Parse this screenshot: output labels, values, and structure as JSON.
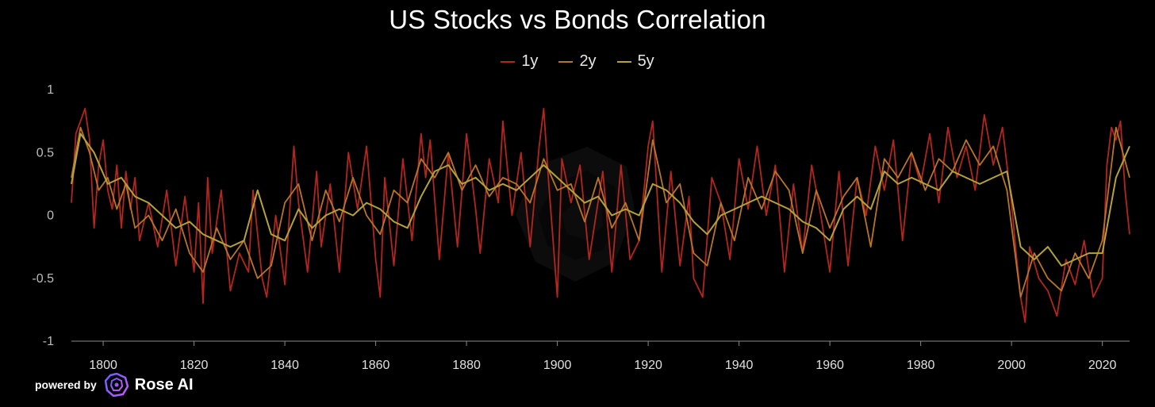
{
  "chart_data": {
    "type": "line",
    "title": "US Stocks vs Bonds Correlation",
    "xlabel": "",
    "ylabel": "",
    "xlim": [
      1793,
      2026
    ],
    "ylim": [
      -1,
      1
    ],
    "x_ticks": [
      1800,
      1820,
      1840,
      1860,
      1880,
      1900,
      1920,
      1940,
      1960,
      1980,
      2000,
      2020
    ],
    "y_ticks": [
      1,
      0.5,
      0,
      -0.5,
      -1
    ],
    "y_tick_labels": [
      "1",
      "0.5",
      "0",
      "-0.5",
      "-1"
    ],
    "grid": false,
    "legend_position": "top-center",
    "series": [
      {
        "name": "1y",
        "color": "#b3261e",
        "x": [
          1793,
          1794,
          1795,
          1796,
          1797,
          1798,
          1799,
          1800,
          1801,
          1802,
          1803,
          1804,
          1805,
          1806,
          1807,
          1808,
          1810,
          1812,
          1814,
          1816,
          1818,
          1820,
          1821,
          1822,
          1823,
          1824,
          1826,
          1828,
          1830,
          1832,
          1833,
          1835,
          1836,
          1838,
          1840,
          1842,
          1843,
          1845,
          1847,
          1848,
          1850,
          1852,
          1854,
          1856,
          1858,
          1860,
          1861,
          1862,
          1864,
          1866,
          1868,
          1870,
          1871,
          1872,
          1874,
          1876,
          1878,
          1880,
          1882,
          1883,
          1885,
          1887,
          1888,
          1890,
          1892,
          1894,
          1896,
          1897,
          1898,
          1900,
          1901,
          1903,
          1905,
          1907,
          1910,
          1912,
          1914,
          1916,
          1918,
          1920,
          1921,
          1923,
          1925,
          1927,
          1929,
          1930,
          1932,
          1934,
          1936,
          1938,
          1940,
          1942,
          1944,
          1946,
          1948,
          1950,
          1952,
          1954,
          1956,
          1958,
          1960,
          1962,
          1964,
          1966,
          1968,
          1970,
          1972,
          1974,
          1976,
          1978,
          1980,
          1982,
          1984,
          1986,
          1988,
          1990,
          1992,
          1994,
          1996,
          1998,
          2000,
          2001,
          2002,
          2003,
          2004,
          2006,
          2008,
          2010,
          2012,
          2014,
          2016,
          2018,
          2020,
          2021,
          2022,
          2023,
          2024,
          2025,
          2026
        ],
        "values": [
          0.1,
          0.65,
          0.75,
          0.85,
          0.6,
          -0.1,
          0.4,
          0.6,
          0.2,
          0.05,
          0.4,
          -0.1,
          0.35,
          0.05,
          0.3,
          -0.2,
          0.1,
          -0.25,
          0.2,
          -0.4,
          0.15,
          -0.45,
          0.1,
          -0.7,
          0.3,
          -0.3,
          0.2,
          -0.6,
          -0.3,
          -0.45,
          0.2,
          -0.5,
          -0.65,
          0.0,
          -0.55,
          0.55,
          0.1,
          -0.45,
          0.35,
          -0.25,
          0.25,
          -0.45,
          0.5,
          0.05,
          0.55,
          -0.35,
          -0.65,
          0.3,
          -0.4,
          0.45,
          -0.2,
          0.65,
          0.3,
          0.6,
          -0.35,
          0.5,
          -0.25,
          0.65,
          0.05,
          -0.3,
          0.45,
          0.1,
          0.75,
          0.0,
          0.5,
          -0.25,
          0.55,
          0.85,
          0.3,
          -0.65,
          0.45,
          0.1,
          0.4,
          -0.35,
          0.35,
          -0.45,
          0.4,
          -0.35,
          -0.2,
          0.55,
          0.75,
          -0.45,
          0.35,
          -0.4,
          0.15,
          -0.5,
          -0.65,
          0.3,
          0.1,
          -0.35,
          0.45,
          0.05,
          0.55,
          0.0,
          0.4,
          -0.45,
          0.25,
          -0.3,
          0.4,
          0.0,
          -0.45,
          0.35,
          -0.4,
          0.3,
          0.0,
          0.55,
          0.2,
          0.6,
          -0.2,
          0.5,
          0.25,
          0.65,
          0.1,
          0.7,
          0.3,
          0.55,
          0.2,
          0.8,
          0.4,
          0.7,
          0.1,
          -0.3,
          -0.65,
          -0.85,
          -0.25,
          -0.5,
          -0.6,
          -0.8,
          -0.35,
          -0.55,
          -0.2,
          -0.65,
          -0.5,
          0.4,
          0.7,
          0.6,
          0.75,
          0.2,
          -0.15
        ]
      },
      {
        "name": "2y",
        "color": "#b8742a",
        "x": [
          1793,
          1795,
          1797,
          1799,
          1801,
          1803,
          1805,
          1807,
          1810,
          1813,
          1816,
          1819,
          1822,
          1825,
          1828,
          1831,
          1834,
          1837,
          1840,
          1843,
          1846,
          1849,
          1852,
          1855,
          1858,
          1861,
          1864,
          1867,
          1870,
          1873,
          1876,
          1879,
          1882,
          1885,
          1888,
          1891,
          1894,
          1897,
          1900,
          1903,
          1906,
          1909,
          1912,
          1915,
          1918,
          1921,
          1924,
          1927,
          1930,
          1933,
          1936,
          1939,
          1942,
          1945,
          1948,
          1951,
          1954,
          1957,
          1960,
          1963,
          1966,
          1969,
          1972,
          1975,
          1978,
          1981,
          1984,
          1987,
          1990,
          1993,
          1996,
          1999,
          2002,
          2005,
          2008,
          2011,
          2014,
          2017,
          2020,
          2023,
          2026
        ],
        "values": [
          0.3,
          0.7,
          0.5,
          0.2,
          0.3,
          0.05,
          0.25,
          -0.1,
          0.0,
          -0.2,
          0.05,
          -0.3,
          -0.45,
          -0.1,
          -0.35,
          -0.2,
          -0.5,
          -0.4,
          0.1,
          0.25,
          -0.2,
          0.2,
          -0.05,
          0.3,
          0.0,
          -0.15,
          0.2,
          0.1,
          0.45,
          0.3,
          0.5,
          0.2,
          0.4,
          0.15,
          0.3,
          0.25,
          0.1,
          0.45,
          0.2,
          0.25,
          -0.05,
          0.3,
          -0.1,
          0.1,
          -0.2,
          0.6,
          0.1,
          0.25,
          -0.3,
          -0.4,
          0.1,
          -0.2,
          0.3,
          0.05,
          0.35,
          0.2,
          -0.3,
          0.2,
          -0.1,
          0.15,
          0.3,
          -0.25,
          0.45,
          0.3,
          0.5,
          0.2,
          0.45,
          0.35,
          0.6,
          0.4,
          0.55,
          0.2,
          -0.65,
          -0.3,
          -0.5,
          -0.6,
          -0.3,
          -0.5,
          -0.2,
          0.7,
          0.3
        ]
      },
      {
        "name": "5y",
        "color": "#b4a23a",
        "x": [
          1793,
          1795,
          1798,
          1801,
          1804,
          1807,
          1810,
          1813,
          1816,
          1819,
          1822,
          1825,
          1828,
          1831,
          1834,
          1837,
          1840,
          1843,
          1846,
          1849,
          1852,
          1855,
          1858,
          1861,
          1864,
          1867,
          1870,
          1873,
          1876,
          1879,
          1882,
          1885,
          1888,
          1891,
          1894,
          1897,
          1900,
          1903,
          1906,
          1909,
          1912,
          1915,
          1918,
          1921,
          1924,
          1927,
          1930,
          1933,
          1936,
          1939,
          1942,
          1945,
          1948,
          1951,
          1954,
          1957,
          1960,
          1963,
          1966,
          1969,
          1972,
          1975,
          1978,
          1981,
          1984,
          1987,
          1990,
          1993,
          1996,
          1999,
          2002,
          2005,
          2008,
          2011,
          2014,
          2017,
          2020,
          2023,
          2026
        ],
        "values": [
          0.25,
          0.65,
          0.5,
          0.25,
          0.3,
          0.15,
          0.1,
          0.0,
          -0.1,
          -0.05,
          -0.15,
          -0.2,
          -0.25,
          -0.2,
          0.2,
          -0.15,
          -0.2,
          0.05,
          -0.1,
          0.0,
          0.05,
          0.0,
          0.1,
          0.05,
          -0.05,
          -0.1,
          0.15,
          0.35,
          0.4,
          0.25,
          0.3,
          0.2,
          0.25,
          0.2,
          0.3,
          0.4,
          0.3,
          0.2,
          0.1,
          0.15,
          0.0,
          0.05,
          0.0,
          0.25,
          0.2,
          0.1,
          -0.05,
          -0.15,
          0.0,
          0.05,
          0.1,
          0.15,
          0.1,
          0.05,
          -0.05,
          -0.1,
          -0.2,
          0.05,
          0.15,
          0.05,
          0.35,
          0.25,
          0.3,
          0.25,
          0.2,
          0.35,
          0.3,
          0.25,
          0.3,
          0.35,
          -0.25,
          -0.35,
          -0.25,
          -0.4,
          -0.35,
          -0.3,
          -0.3,
          0.3,
          0.55
        ]
      }
    ]
  },
  "branding": {
    "powered_by": "powered by",
    "name": "Rose AI"
  }
}
